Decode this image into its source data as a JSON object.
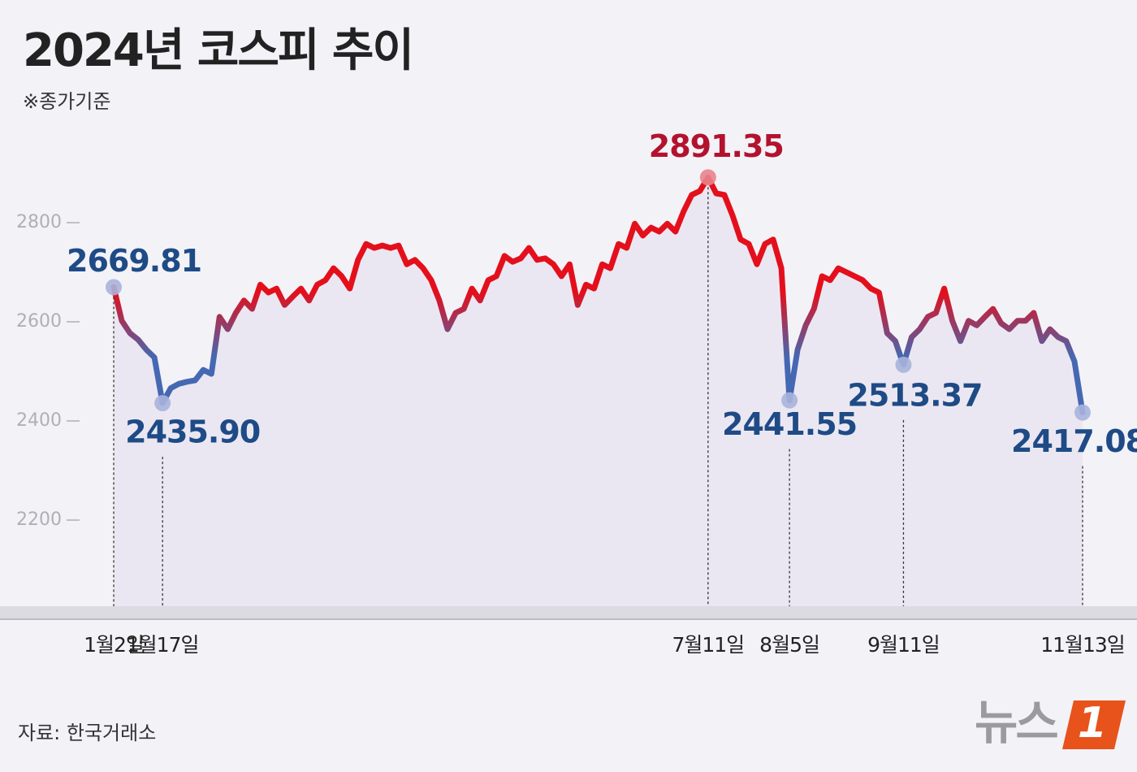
{
  "chart_data": {
    "type": "line",
    "title": "2024년 코스피 추이",
    "subtitle": "※종가기준",
    "source": "자료: 한국거래소",
    "categories": [
      "1월2일",
      null,
      null,
      null,
      null,
      null,
      "1월17일",
      null,
      null,
      null,
      null,
      null,
      null,
      null,
      null,
      null,
      null,
      null,
      null,
      null,
      null,
      null,
      null,
      null,
      null,
      null,
      null,
      null,
      null,
      null,
      null,
      null,
      null,
      null,
      null,
      null,
      null,
      null,
      null,
      null,
      null,
      null,
      null,
      null,
      null,
      null,
      null,
      null,
      null,
      null,
      null,
      null,
      null,
      null,
      null,
      null,
      null,
      null,
      null,
      null,
      null,
      null,
      null,
      null,
      null,
      null,
      null,
      null,
      null,
      null,
      null,
      null,
      null,
      "7월11일",
      null,
      null,
      null,
      null,
      null,
      null,
      null,
      null,
      null,
      "8월5일",
      null,
      null,
      null,
      null,
      null,
      null,
      null,
      null,
      null,
      null,
      null,
      null,
      null,
      "9월11일",
      null,
      null,
      null,
      null,
      null,
      null,
      null,
      null,
      null,
      null,
      null,
      null,
      null,
      null,
      null,
      null,
      null,
      null,
      null,
      null,
      null,
      "11월13일"
    ],
    "series": [
      {
        "name": "코스피",
        "gradient_colors": [
          "#4568b2",
          "#e3101c"
        ],
        "values": [
          2669.81,
          2602,
          2577,
          2564,
          2544,
          2528,
          2435.9,
          2466,
          2475,
          2479,
          2482,
          2503,
          2495,
          2610,
          2585,
          2618,
          2643,
          2626,
          2675,
          2659,
          2667,
          2634,
          2651,
          2667,
          2643,
          2675,
          2684,
          2708,
          2692,
          2667,
          2725,
          2757,
          2749,
          2754,
          2749,
          2754,
          2716,
          2725,
          2708,
          2684,
          2643,
          2585,
          2618,
          2626,
          2667,
          2643,
          2684,
          2692,
          2733,
          2721,
          2728,
          2749,
          2725,
          2728,
          2716,
          2692,
          2716,
          2634,
          2675,
          2667,
          2716,
          2708,
          2757,
          2749,
          2798,
          2774,
          2790,
          2782,
          2798,
          2782,
          2823,
          2856,
          2864,
          2891.35,
          2859,
          2856,
          2815,
          2766,
          2757,
          2716,
          2757,
          2766,
          2708,
          2441.55,
          2544,
          2593,
          2626,
          2692,
          2684,
          2708,
          2700,
          2692,
          2684,
          2667,
          2659,
          2577,
          2561,
          2513.37,
          2569,
          2585,
          2610,
          2618,
          2667,
          2602,
          2561,
          2602,
          2593,
          2610,
          2626,
          2597,
          2585,
          2602,
          2602,
          2618,
          2561,
          2585,
          2569,
          2561,
          2520,
          2417.08
        ],
        "value_labels": [
          "2669.81",
          null,
          null,
          null,
          null,
          null,
          "2435.90",
          null,
          null,
          null,
          null,
          null,
          null,
          null,
          null,
          null,
          null,
          null,
          null,
          null,
          null,
          null,
          null,
          null,
          null,
          null,
          null,
          null,
          null,
          null,
          null,
          null,
          null,
          null,
          null,
          null,
          null,
          null,
          null,
          null,
          null,
          null,
          null,
          null,
          null,
          null,
          null,
          null,
          null,
          null,
          null,
          null,
          null,
          null,
          null,
          null,
          null,
          null,
          null,
          null,
          null,
          null,
          null,
          null,
          null,
          null,
          null,
          null,
          null,
          null,
          null,
          null,
          null,
          "2891.35",
          null,
          null,
          null,
          null,
          null,
          null,
          null,
          null,
          null,
          "2441.55",
          null,
          null,
          null,
          null,
          null,
          null,
          null,
          null,
          null,
          null,
          null,
          null,
          null,
          "2513.37",
          null,
          null,
          null,
          null,
          null,
          null,
          null,
          null,
          null,
          null,
          null,
          null,
          null,
          null,
          null,
          null,
          null,
          null,
          null,
          null,
          null,
          "2417.08"
        ]
      }
    ],
    "ylim": [
      2000,
      2950
    ],
    "yticks": [
      2200,
      2400,
      2600,
      2800
    ],
    "fill_color": "#ebe7f2"
  },
  "logo": {
    "text": "뉴스",
    "mark": "1"
  }
}
